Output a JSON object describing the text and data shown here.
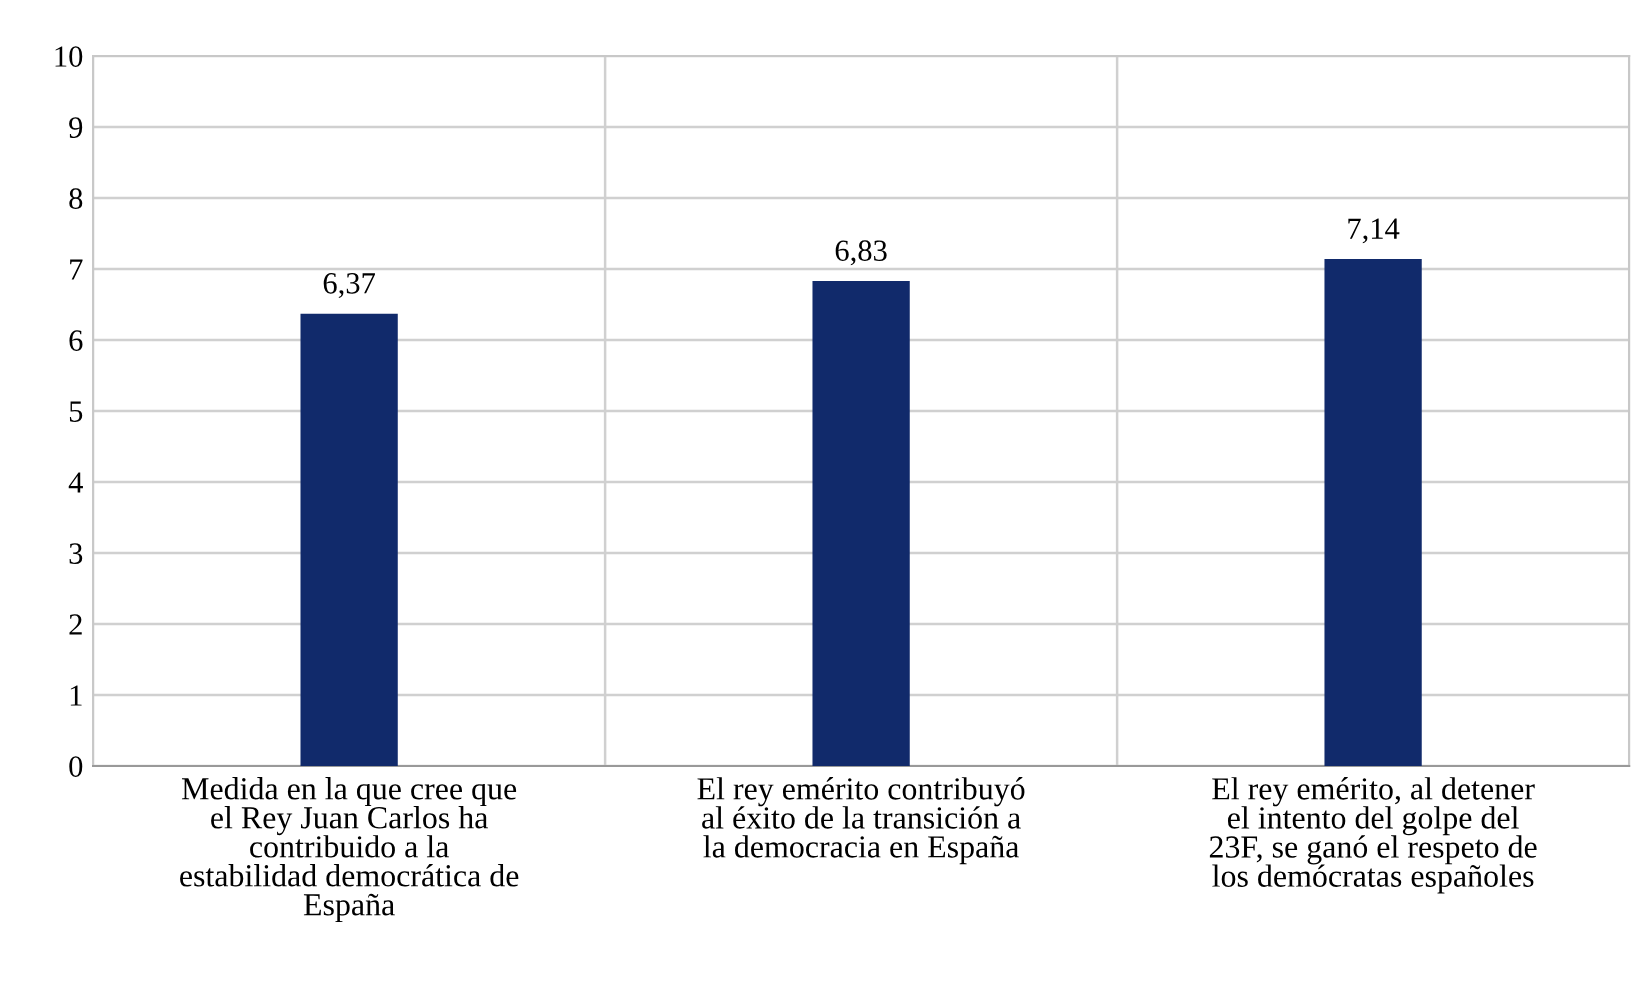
{
  "chart_data": {
    "type": "bar",
    "categories": [
      "Medida en la que cree que\nel Rey Juan Carlos ha\ncontribuido a la\nestabilidad democrática de\nEspaña",
      "El rey emérito contribuyó\nal éxito de la transición a\nla democracia en España",
      "El rey emérito, al detener\nel intento del golpe del\n23F, se ganó el respeto de\nlos demócratas españoles"
    ],
    "values": [
      6.37,
      6.83,
      7.14
    ],
    "value_labels": [
      "6,37",
      "6,83",
      "7,14"
    ],
    "color": "#112a6b",
    "ylim": [
      0,
      10
    ],
    "yticks": [
      0,
      1,
      2,
      3,
      4,
      5,
      6,
      7,
      8,
      9,
      10
    ],
    "grid": true
  }
}
